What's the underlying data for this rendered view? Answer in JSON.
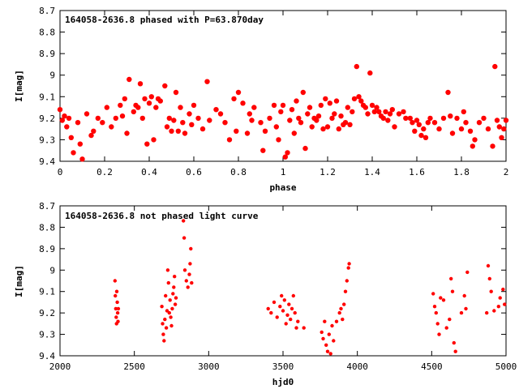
{
  "chart_data": [
    {
      "type": "scatter",
      "title": "164058-2636.8 phased with P=63.870day",
      "xlabel": "phase",
      "ylabel": "I[mag]",
      "xlim": [
        0,
        2
      ],
      "ylim": [
        8.7,
        9.4
      ],
      "y_inverted": true,
      "grid": false,
      "marker_color": "#ff0000",
      "marker": "filled circle",
      "x_ticks": [
        "0",
        "0.2",
        "0.4",
        "0.6",
        "0.8",
        "1",
        "1.2",
        "1.4",
        "1.6",
        "1.8",
        "2"
      ],
      "y_ticks": [
        "8.7",
        "8.8",
        "8.9",
        "9",
        "9.1",
        "9.2",
        "9.3",
        "9.4"
      ],
      "points": [
        [
          0.0,
          9.16
        ],
        [
          0.01,
          9.21
        ],
        [
          0.02,
          9.19
        ],
        [
          0.03,
          9.24
        ],
        [
          0.04,
          9.2
        ],
        [
          0.05,
          9.29
        ],
        [
          0.06,
          9.36
        ],
        [
          0.08,
          9.22
        ],
        [
          0.09,
          9.32
        ],
        [
          0.1,
          9.39
        ],
        [
          0.12,
          9.18
        ],
        [
          0.14,
          9.28
        ],
        [
          0.15,
          9.26
        ],
        [
          0.17,
          9.2
        ],
        [
          0.19,
          9.22
        ],
        [
          0.21,
          9.15
        ],
        [
          0.23,
          9.24
        ],
        [
          0.25,
          9.2
        ],
        [
          0.27,
          9.14
        ],
        [
          0.28,
          9.19
        ],
        [
          0.29,
          9.11
        ],
        [
          0.3,
          9.27
        ],
        [
          0.31,
          9.02
        ],
        [
          0.33,
          9.17
        ],
        [
          0.34,
          9.14
        ],
        [
          0.35,
          9.15
        ],
        [
          0.36,
          9.04
        ],
        [
          0.37,
          9.2
        ],
        [
          0.38,
          9.11
        ],
        [
          0.39,
          9.32
        ],
        [
          0.4,
          9.13
        ],
        [
          0.41,
          9.1
        ],
        [
          0.42,
          9.3
        ],
        [
          0.43,
          9.15
        ],
        [
          0.44,
          9.11
        ],
        [
          0.45,
          9.12
        ],
        [
          0.47,
          9.05
        ],
        [
          0.48,
          9.24
        ],
        [
          0.49,
          9.2
        ],
        [
          0.5,
          9.26
        ],
        [
          0.51,
          9.21
        ],
        [
          0.52,
          9.08
        ],
        [
          0.53,
          9.26
        ],
        [
          0.54,
          9.15
        ],
        [
          0.55,
          9.22
        ],
        [
          0.56,
          9.27
        ],
        [
          0.58,
          9.18
        ],
        [
          0.59,
          9.23
        ],
        [
          0.6,
          9.14
        ],
        [
          0.62,
          9.2
        ],
        [
          0.64,
          9.25
        ],
        [
          0.66,
          9.03
        ],
        [
          0.67,
          9.21
        ],
        [
          0.7,
          9.16
        ],
        [
          0.72,
          9.18
        ],
        [
          0.74,
          9.22
        ],
        [
          0.76,
          9.3
        ],
        [
          0.78,
          9.11
        ],
        [
          0.79,
          9.26
        ],
        [
          0.8,
          9.08
        ],
        [
          0.82,
          9.13
        ],
        [
          0.84,
          9.27
        ],
        [
          0.85,
          9.18
        ],
        [
          0.86,
          9.21
        ],
        [
          0.87,
          9.15
        ],
        [
          0.9,
          9.22
        ],
        [
          0.91,
          9.35
        ],
        [
          0.92,
          9.26
        ],
        [
          0.94,
          9.2
        ],
        [
          0.96,
          9.14
        ],
        [
          0.97,
          9.24
        ],
        [
          0.98,
          9.3
        ],
        [
          0.99,
          9.17
        ],
        [
          1.0,
          9.14
        ],
        [
          1.01,
          9.38
        ],
        [
          1.02,
          9.36
        ],
        [
          1.03,
          9.21
        ],
        [
          1.04,
          9.16
        ],
        [
          1.05,
          9.27
        ],
        [
          1.06,
          9.12
        ],
        [
          1.07,
          9.2
        ],
        [
          1.08,
          9.22
        ],
        [
          1.09,
          9.08
        ],
        [
          1.1,
          9.34
        ],
        [
          1.11,
          9.18
        ],
        [
          1.12,
          9.15
        ],
        [
          1.13,
          9.24
        ],
        [
          1.14,
          9.2
        ],
        [
          1.15,
          9.21
        ],
        [
          1.16,
          9.19
        ],
        [
          1.17,
          9.14
        ],
        [
          1.18,
          9.25
        ],
        [
          1.19,
          9.11
        ],
        [
          1.2,
          9.24
        ],
        [
          1.21,
          9.13
        ],
        [
          1.22,
          9.2
        ],
        [
          1.23,
          9.18
        ],
        [
          1.24,
          9.12
        ],
        [
          1.25,
          9.25
        ],
        [
          1.26,
          9.19
        ],
        [
          1.27,
          9.23
        ],
        [
          1.28,
          9.22
        ],
        [
          1.29,
          9.15
        ],
        [
          1.3,
          9.23
        ],
        [
          1.31,
          9.17
        ],
        [
          1.32,
          9.11
        ],
        [
          1.33,
          8.96
        ],
        [
          1.34,
          9.1
        ],
        [
          1.35,
          9.12
        ],
        [
          1.36,
          9.14
        ],
        [
          1.37,
          9.15
        ],
        [
          1.38,
          9.18
        ],
        [
          1.39,
          8.99
        ],
        [
          1.4,
          9.14
        ],
        [
          1.41,
          9.17
        ],
        [
          1.42,
          9.15
        ],
        [
          1.43,
          9.17
        ],
        [
          1.44,
          9.19
        ],
        [
          1.45,
          9.2
        ],
        [
          1.46,
          9.17
        ],
        [
          1.47,
          9.21
        ],
        [
          1.48,
          9.18
        ],
        [
          1.49,
          9.16
        ],
        [
          1.5,
          9.24
        ],
        [
          1.52,
          9.18
        ],
        [
          1.54,
          9.17
        ],
        [
          1.55,
          9.2
        ],
        [
          1.57,
          9.2
        ],
        [
          1.58,
          9.22
        ],
        [
          1.59,
          9.26
        ],
        [
          1.6,
          9.21
        ],
        [
          1.61,
          9.23
        ],
        [
          1.62,
          9.28
        ],
        [
          1.63,
          9.25
        ],
        [
          1.64,
          9.29
        ],
        [
          1.65,
          9.22
        ],
        [
          1.66,
          9.2
        ],
        [
          1.68,
          9.22
        ],
        [
          1.7,
          9.25
        ],
        [
          1.72,
          9.2
        ],
        [
          1.74,
          9.08
        ],
        [
          1.75,
          9.19
        ],
        [
          1.76,
          9.27
        ],
        [
          1.78,
          9.2
        ],
        [
          1.8,
          9.25
        ],
        [
          1.81,
          9.17
        ],
        [
          1.82,
          9.22
        ],
        [
          1.84,
          9.26
        ],
        [
          1.85,
          9.33
        ],
        [
          1.86,
          9.3
        ],
        [
          1.88,
          9.22
        ],
        [
          1.9,
          9.2
        ],
        [
          1.92,
          9.25
        ],
        [
          1.94,
          9.33
        ],
        [
          1.95,
          8.96
        ],
        [
          1.96,
          9.21
        ],
        [
          1.97,
          9.24
        ],
        [
          1.98,
          9.29
        ],
        [
          1.99,
          9.25
        ],
        [
          2.0,
          9.21
        ]
      ]
    },
    {
      "type": "scatter",
      "title": "164058-2636.8 not phased light curve",
      "xlabel": "hjd0",
      "ylabel": "I[mag]",
      "xlim": [
        2000,
        5000
      ],
      "ylim": [
        8.7,
        9.4
      ],
      "y_inverted": true,
      "grid": false,
      "marker_color": "#ff0000",
      "marker": "filled circle",
      "x_ticks": [
        "2000",
        "2500",
        "3000",
        "3500",
        "4000",
        "4500",
        "5000"
      ],
      "y_ticks": [
        "8.7",
        "8.8",
        "8.9",
        "9",
        "9.1",
        "9.2",
        "9.3",
        "9.4"
      ],
      "points": [
        [
          2370,
          9.05
        ],
        [
          2372,
          9.12
        ],
        [
          2375,
          9.18
        ],
        [
          2378,
          9.22
        ],
        [
          2380,
          9.25
        ],
        [
          2382,
          9.1
        ],
        [
          2385,
          9.15
        ],
        [
          2388,
          9.2
        ],
        [
          2390,
          9.24
        ],
        [
          2392,
          9.18
        ],
        [
          2685,
          9.17
        ],
        [
          2690,
          9.25
        ],
        [
          2695,
          9.3
        ],
        [
          2700,
          9.33
        ],
        [
          2705,
          9.23
        ],
        [
          2710,
          9.12
        ],
        [
          2715,
          9.27
        ],
        [
          2720,
          9.19
        ],
        [
          2725,
          9.0
        ],
        [
          2730,
          9.06
        ],
        [
          2735,
          9.2
        ],
        [
          2740,
          9.14
        ],
        [
          2745,
          9.22
        ],
        [
          2750,
          9.26
        ],
        [
          2755,
          9.18
        ],
        [
          2760,
          9.11
        ],
        [
          2765,
          9.08
        ],
        [
          2770,
          9.03
        ],
        [
          2775,
          9.16
        ],
        [
          2780,
          9.13
        ],
        [
          2830,
          8.77
        ],
        [
          2835,
          8.85
        ],
        [
          2840,
          9.0
        ],
        [
          2850,
          9.05
        ],
        [
          2860,
          9.08
        ],
        [
          2870,
          9.02
        ],
        [
          2875,
          8.97
        ],
        [
          2880,
          8.9
        ],
        [
          2885,
          9.06
        ],
        [
          3400,
          9.18
        ],
        [
          3420,
          9.2
        ],
        [
          3440,
          9.15
        ],
        [
          3460,
          9.22
        ],
        [
          3480,
          9.17
        ],
        [
          3490,
          9.12
        ],
        [
          3500,
          9.19
        ],
        [
          3510,
          9.14
        ],
        [
          3520,
          9.25
        ],
        [
          3530,
          9.21
        ],
        [
          3540,
          9.16
        ],
        [
          3550,
          9.23
        ],
        [
          3560,
          9.18
        ],
        [
          3570,
          9.12
        ],
        [
          3580,
          9.2
        ],
        [
          3590,
          9.27
        ],
        [
          3600,
          9.24
        ],
        [
          3640,
          9.27
        ],
        [
          3760,
          9.29
        ],
        [
          3770,
          9.32
        ],
        [
          3780,
          9.24
        ],
        [
          3790,
          9.35
        ],
        [
          3800,
          9.38
        ],
        [
          3810,
          9.3
        ],
        [
          3820,
          9.39
        ],
        [
          3830,
          9.26
        ],
        [
          3840,
          9.33
        ],
        [
          3860,
          9.24
        ],
        [
          3880,
          9.2
        ],
        [
          3890,
          9.18
        ],
        [
          3900,
          9.23
        ],
        [
          3910,
          9.16
        ],
        [
          3920,
          9.1
        ],
        [
          3930,
          9.05
        ],
        [
          3940,
          8.99
        ],
        [
          3945,
          8.97
        ],
        [
          4510,
          9.11
        ],
        [
          4520,
          9.17
        ],
        [
          4530,
          9.2
        ],
        [
          4540,
          9.25
        ],
        [
          4550,
          9.3
        ],
        [
          4560,
          9.13
        ],
        [
          4580,
          9.14
        ],
        [
          4600,
          9.27
        ],
        [
          4620,
          9.23
        ],
        [
          4630,
          9.04
        ],
        [
          4640,
          9.1
        ],
        [
          4650,
          9.34
        ],
        [
          4660,
          9.38
        ],
        [
          4700,
          9.2
        ],
        [
          4720,
          9.12
        ],
        [
          4730,
          9.18
        ],
        [
          4740,
          9.01
        ],
        [
          4870,
          9.2
        ],
        [
          4880,
          8.98
        ],
        [
          4890,
          9.04
        ],
        [
          4900,
          9.1
        ],
        [
          4920,
          9.19
        ],
        [
          4950,
          9.17
        ],
        [
          4960,
          9.13
        ],
        [
          4980,
          9.09
        ],
        [
          4990,
          9.16
        ]
      ]
    }
  ]
}
